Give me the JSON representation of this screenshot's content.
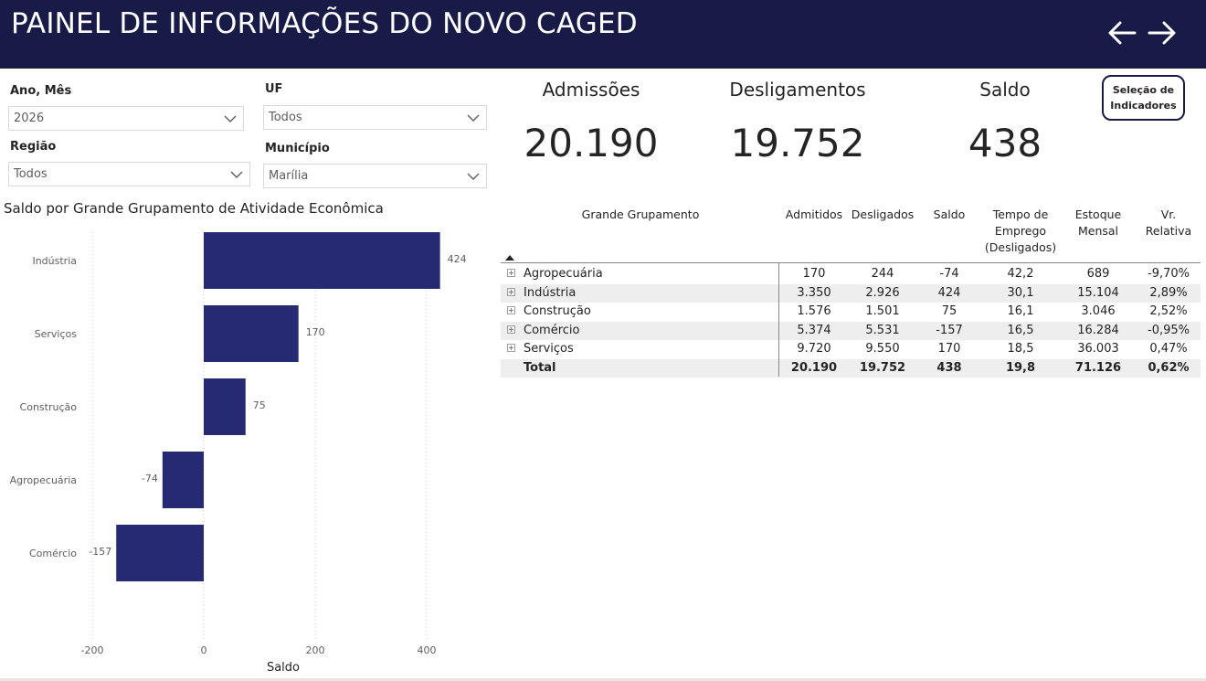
{
  "header": {
    "title": "PAINEL DE INFORMAÇÕES DO NOVO CAGED",
    "colors": {
      "background": "#171b45",
      "text": "#ffffff"
    }
  },
  "nav": {
    "back_icon": "arrow-left-icon",
    "forward_icon": "arrow-right-icon"
  },
  "filters": {
    "ano_mes": {
      "label": "Ano, Mês",
      "value": "2026"
    },
    "uf": {
      "label": "UF",
      "value": "Todos"
    },
    "regiao": {
      "label": "Região",
      "value": "Todos"
    },
    "municipio": {
      "label": "Município",
      "value": "Marília"
    }
  },
  "kpis": {
    "admissoes": {
      "label": "Admissões",
      "value": "20.190"
    },
    "desligamentos": {
      "label": "Desligamentos",
      "value": "19.752"
    },
    "saldo": {
      "label": "Saldo",
      "value": "438"
    }
  },
  "selection_button": {
    "line1": "Seleção de",
    "line2": "Indicadores"
  },
  "chart_data": {
    "type": "bar",
    "orientation": "horizontal",
    "title": "Saldo por Grande Grupamento de Atividade Econômica",
    "xlabel": "Saldo",
    "ylabel": "",
    "categories": [
      "Indústria",
      "Serviços",
      "Construção",
      "Agropecuária",
      "Comércio"
    ],
    "values": [
      424,
      170,
      75,
      -74,
      -157
    ],
    "data_labels": [
      "424",
      "170",
      "75",
      "-74",
      "-157"
    ],
    "xlim": [
      -200,
      400
    ],
    "x_ticks": [
      -200,
      0,
      200,
      400
    ],
    "x_tick_labels": [
      "-200",
      "0",
      "200",
      "400"
    ],
    "grid": true,
    "bar_color": "#252a72"
  },
  "table": {
    "headers": {
      "grupamento": "Grande Grupamento",
      "admitidos": "Admitidos",
      "desligados": "Desligados",
      "saldo": "Saldo",
      "tempo_1": "Tempo de",
      "tempo_2": "Emprego",
      "tempo_3": "(Desligados)",
      "estoque_1": "Estoque",
      "estoque_2": "Mensal",
      "vr_1": "Vr.",
      "vr_2": "Relativa"
    },
    "rows": [
      {
        "name": "Agropecuária",
        "admitidos": "170",
        "desligados": "244",
        "saldo": "-74",
        "tempo": "42,2",
        "estoque": "689",
        "vr": "-9,70%"
      },
      {
        "name": "Indústria",
        "admitidos": "3.350",
        "desligados": "2.926",
        "saldo": "424",
        "tempo": "30,1",
        "estoque": "15.104",
        "vr": "2,89%"
      },
      {
        "name": "Construção",
        "admitidos": "1.576",
        "desligados": "1.501",
        "saldo": "75",
        "tempo": "16,1",
        "estoque": "3.046",
        "vr": "2,52%"
      },
      {
        "name": "Comércio",
        "admitidos": "5.374",
        "desligados": "5.531",
        "saldo": "-157",
        "tempo": "16,5",
        "estoque": "16.284",
        "vr": "-0,95%"
      },
      {
        "name": "Serviços",
        "admitidos": "9.720",
        "desligados": "9.550",
        "saldo": "170",
        "tempo": "18,5",
        "estoque": "36.003",
        "vr": "0,47%"
      }
    ],
    "total": {
      "name": "Total",
      "admitidos": "20.190",
      "desligados": "19.752",
      "saldo": "438",
      "tempo": "19,8",
      "estoque": "71.126",
      "vr": "0,62%"
    }
  }
}
